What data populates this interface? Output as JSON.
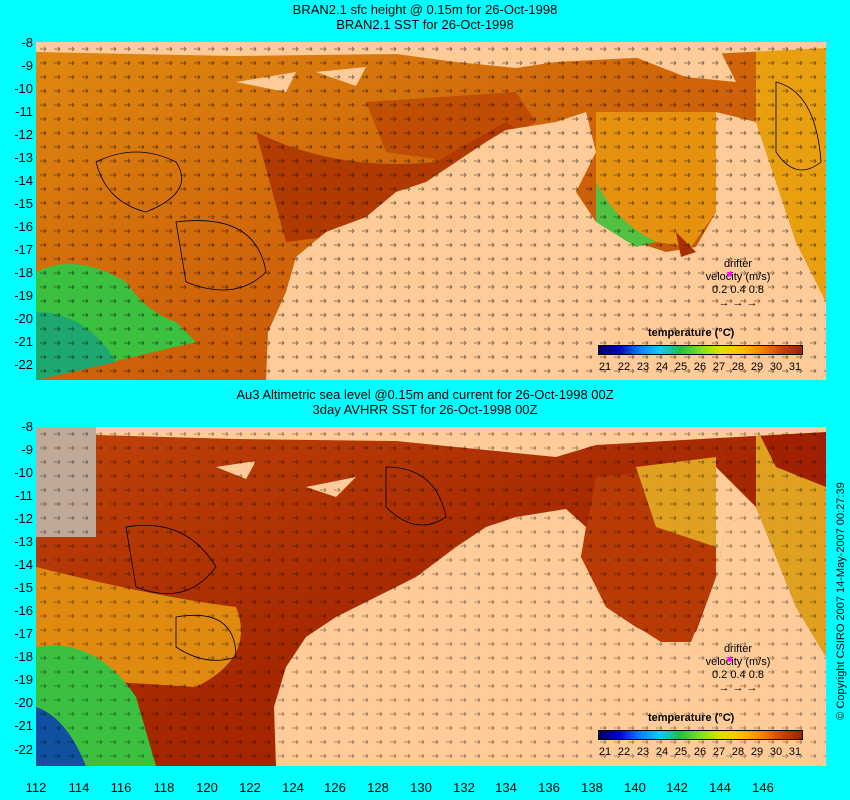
{
  "top_panel": {
    "title_line1": "BRAN2.1 sfc height @ 0.15m for 26-Oct-1998",
    "title_line2": "BRAN2.1 SST for 26-Oct-1998"
  },
  "bottom_panel": {
    "title_line1": "Au3 Altimetric sea level  @0.15m and current for 26-Oct-1998 00Z",
    "title_line2": "3day AVHRR SST for 26-Oct-1998 00Z"
  },
  "latitude_labels": [
    "-8",
    "-9",
    "-10",
    "-11",
    "-12",
    "-13",
    "-14",
    "-15",
    "-16",
    "-17",
    "-18",
    "-19",
    "-20",
    "-21",
    "-22"
  ],
  "longitude_labels": [
    "112",
    "114",
    "116",
    "118",
    "120",
    "122",
    "124",
    "126",
    "128",
    "130",
    "132",
    "134",
    "136",
    "138",
    "140",
    "142",
    "144",
    "146"
  ],
  "drifter": {
    "label": "drifter",
    "velocity_label": "velocity (m/s)",
    "scale_values": "0.2  0.4  0.8",
    "arrows": "→   →   →"
  },
  "legend": {
    "title": "temperature (°C)",
    "ticks": [
      "21",
      "22",
      "23",
      "24",
      "25",
      "26",
      "27",
      "28",
      "29",
      "30",
      "31"
    ]
  },
  "copyright": "© Copyright CSIRO 2007  14-May-2007 00:27:39",
  "colors": {
    "background": "#00ffff",
    "land": "#ffcc99",
    "no_data": "#bfaa99",
    "warm": "#a62800",
    "mid": "#e08a10",
    "cool": "#3cc040"
  }
}
